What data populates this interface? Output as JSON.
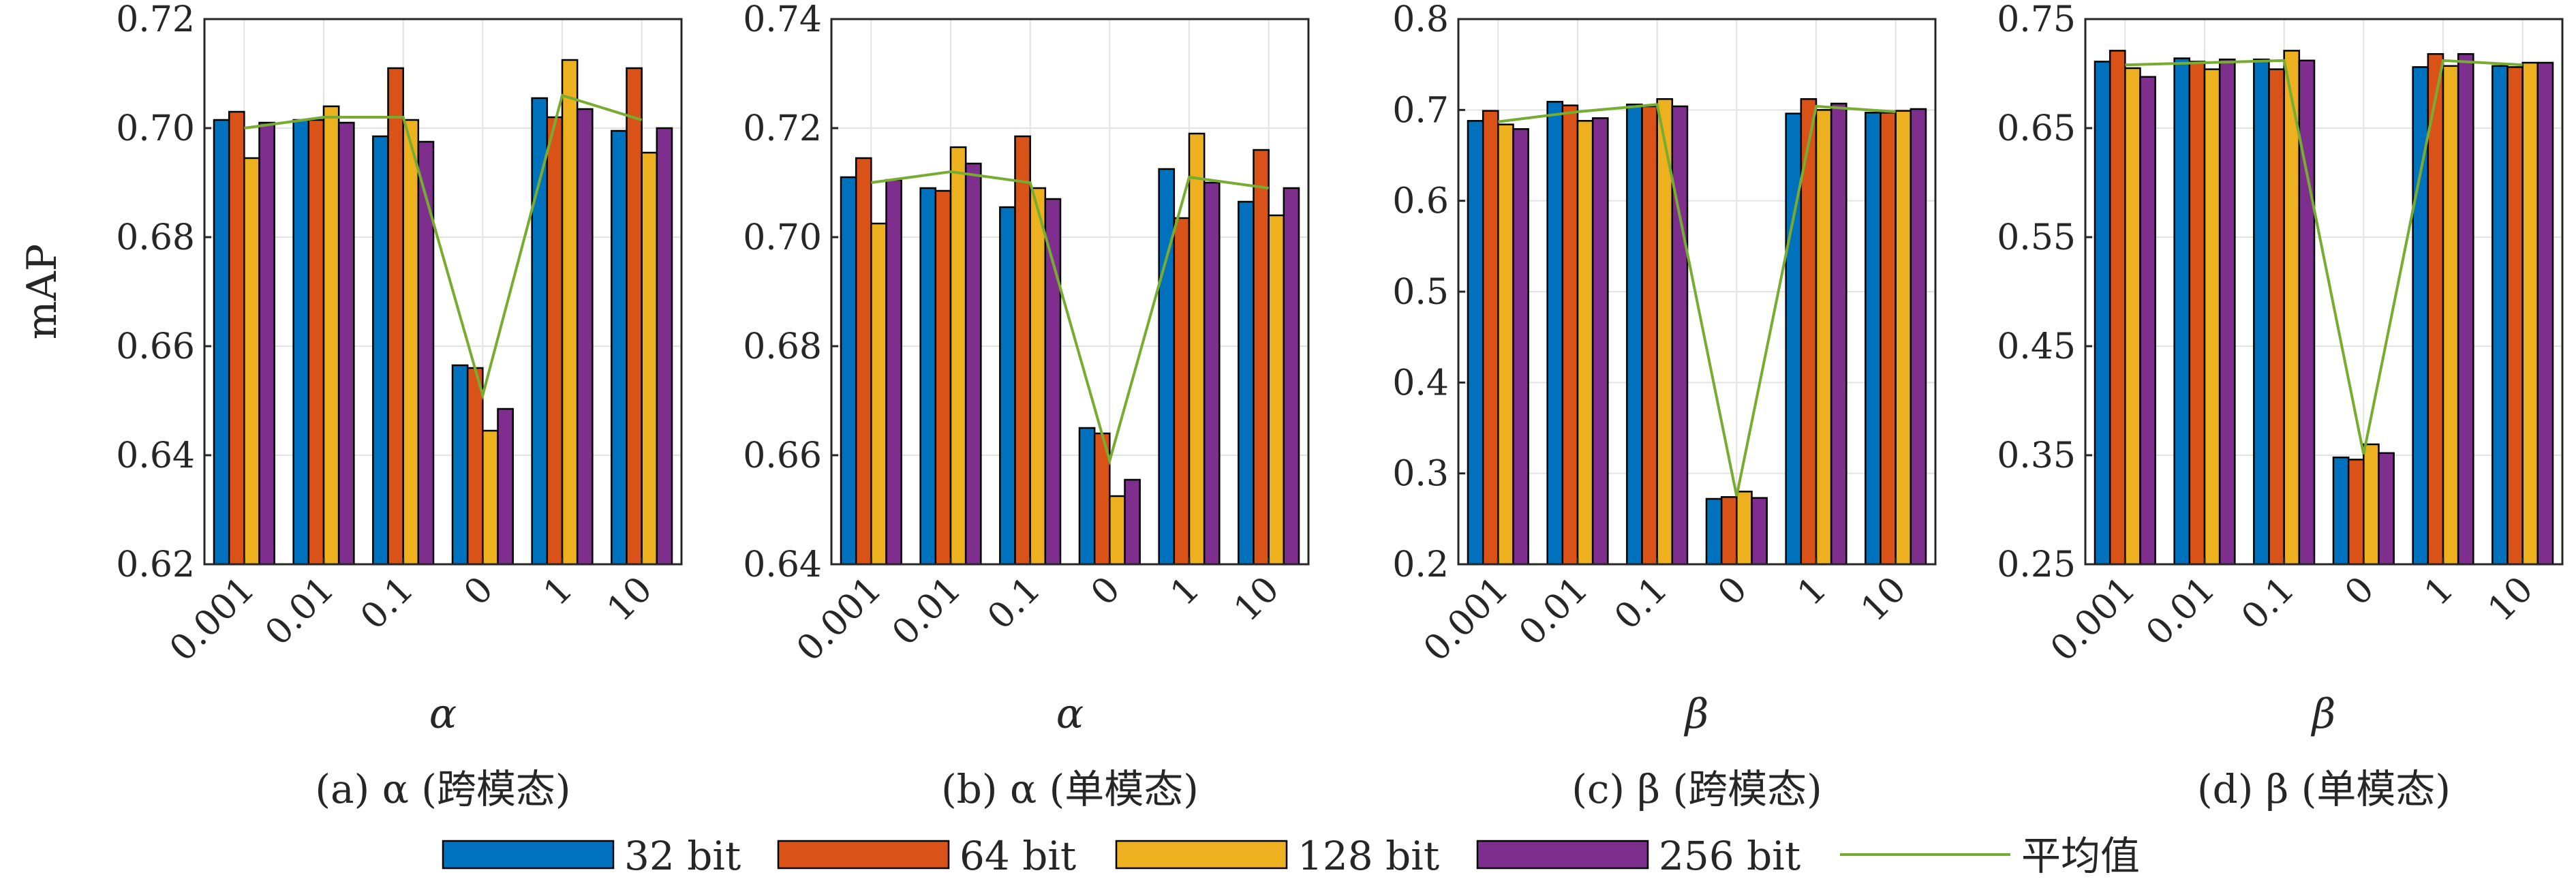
{
  "chart_data": [
    {
      "type": "bar",
      "xlabel": "α",
      "ylabel": "mAP",
      "caption": "(a) α (跨模态)",
      "categories": [
        "0.001",
        "0.01",
        "0.1",
        "0",
        "1",
        "10"
      ],
      "ylim": [
        0.62,
        0.72
      ],
      "yticks": [
        "0.62",
        "0.64",
        "0.66",
        "0.68",
        "0.70",
        "0.72"
      ],
      "grid": true,
      "series": [
        {
          "name": "32 bit",
          "values": [
            0.7015,
            0.7015,
            0.6985,
            0.6565,
            0.7055,
            0.6995
          ]
        },
        {
          "name": "64 bit",
          "values": [
            0.703,
            0.7015,
            0.711,
            0.656,
            0.702,
            0.711
          ]
        },
        {
          "name": "128 bit",
          "values": [
            0.6945,
            0.704,
            0.7015,
            0.6445,
            0.7125,
            0.6955
          ]
        },
        {
          "name": "256 bit",
          "values": [
            0.701,
            0.701,
            0.6975,
            0.6485,
            0.7035,
            0.7
          ]
        }
      ],
      "average": {
        "name": "平均值",
        "values": [
          0.7,
          0.702,
          0.702,
          0.651,
          0.706,
          0.7015
        ]
      }
    },
    {
      "type": "bar",
      "xlabel": "α",
      "ylabel": "",
      "caption": "(b) α (单模态)",
      "categories": [
        "0.001",
        "0.01",
        "0.1",
        "0",
        "1",
        "10"
      ],
      "ylim": [
        0.64,
        0.74
      ],
      "yticks": [
        "0.64",
        "0.66",
        "0.68",
        "0.70",
        "0.72",
        "0.74"
      ],
      "grid": true,
      "series": [
        {
          "name": "32 bit",
          "values": [
            0.711,
            0.709,
            0.7055,
            0.665,
            0.7125,
            0.7065
          ]
        },
        {
          "name": "64 bit",
          "values": [
            0.7145,
            0.7085,
            0.7185,
            0.664,
            0.7035,
            0.716
          ]
        },
        {
          "name": "128 bit",
          "values": [
            0.7025,
            0.7165,
            0.709,
            0.6525,
            0.719,
            0.704
          ]
        },
        {
          "name": "256 bit",
          "values": [
            0.7105,
            0.7135,
            0.707,
            0.6555,
            0.71,
            0.709
          ]
        }
      ],
      "average": {
        "name": "平均值",
        "values": [
          0.71,
          0.712,
          0.71,
          0.659,
          0.711,
          0.709
        ]
      }
    },
    {
      "type": "bar",
      "xlabel": "β",
      "ylabel": "",
      "caption": "(c) β (跨模态)",
      "categories": [
        "0.001",
        "0.01",
        "0.1",
        "0",
        "1",
        "10"
      ],
      "ylim": [
        0.2,
        0.8
      ],
      "yticks": [
        "0.2",
        "0.3",
        "0.4",
        "0.5",
        "0.6",
        "0.7",
        "0.8"
      ],
      "grid": true,
      "series": [
        {
          "name": "32 bit",
          "values": [
            0.688,
            0.709,
            0.706,
            0.272,
            0.696,
            0.697
          ]
        },
        {
          "name": "64 bit",
          "values": [
            0.699,
            0.705,
            0.704,
            0.274,
            0.712,
            0.697
          ]
        },
        {
          "name": "128 bit",
          "values": [
            0.684,
            0.688,
            0.712,
            0.28,
            0.7,
            0.699
          ]
        },
        {
          "name": "256 bit",
          "values": [
            0.679,
            0.691,
            0.704,
            0.273,
            0.707,
            0.701
          ]
        }
      ],
      "average": {
        "name": "平均值",
        "values": [
          0.687,
          0.698,
          0.706,
          0.275,
          0.704,
          0.698
        ]
      }
    },
    {
      "type": "bar",
      "xlabel": "β",
      "ylabel": "",
      "caption": "(d) β (单模态)",
      "categories": [
        "0.001",
        "0.01",
        "0.1",
        "0",
        "1",
        "10"
      ],
      "ylim": [
        0.25,
        0.75
      ],
      "yticks": [
        "0.25",
        "0.35",
        "0.45",
        "0.55",
        "0.65",
        "0.75"
      ],
      "grid": true,
      "series": [
        {
          "name": "32 bit",
          "values": [
            0.711,
            0.714,
            0.713,
            0.348,
            0.706,
            0.707
          ]
        },
        {
          "name": "64 bit",
          "values": [
            0.721,
            0.711,
            0.704,
            0.346,
            0.718,
            0.706
          ]
        },
        {
          "name": "128 bit",
          "values": [
            0.705,
            0.704,
            0.721,
            0.36,
            0.707,
            0.71
          ]
        },
        {
          "name": "256 bit",
          "values": [
            0.697,
            0.713,
            0.712,
            0.352,
            0.718,
            0.71
          ]
        }
      ],
      "average": {
        "name": "平均值",
        "values": [
          0.708,
          0.71,
          0.712,
          0.351,
          0.712,
          0.708
        ]
      }
    }
  ],
  "legend": {
    "placement": "bottom",
    "entries": [
      {
        "name": "32 bit",
        "kind": "bar",
        "color": "#0072bd"
      },
      {
        "name": "64 bit",
        "kind": "bar",
        "color": "#d95319"
      },
      {
        "name": "128 bit",
        "kind": "bar",
        "color": "#edb120"
      },
      {
        "name": "256 bit",
        "kind": "bar",
        "color": "#7e2f8e"
      },
      {
        "name": "平均值",
        "kind": "line",
        "color": "#77ac30"
      }
    ]
  },
  "colors": {
    "series": [
      "#0072bd",
      "#d95319",
      "#edb120",
      "#7e2f8e"
    ],
    "average": "#77ac30",
    "grid": "#e3e3e3",
    "axis": "#262626"
  }
}
